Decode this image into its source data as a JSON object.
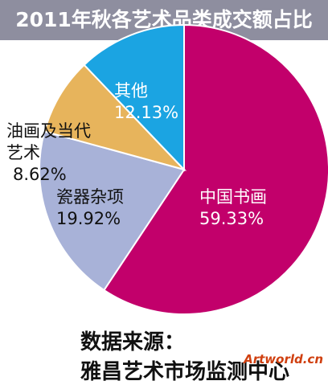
{
  "chart_data": {
    "type": "pie",
    "title": "2011年秋各艺术品类成交额占比",
    "categories": [
      "中国书画",
      "瓷器杂项",
      "油画及当代艺术",
      "其他"
    ],
    "values": [
      59.33,
      19.92,
      8.62,
      12.13
    ],
    "value_labels": [
      "59.33%",
      "19.92%",
      "8.62%",
      "12.13%"
    ],
    "colors": [
      "#c2006b",
      "#a8b2d8",
      "#e7b45c",
      "#1ba4e2"
    ],
    "source": [
      "数据来源：",
      "雅昌艺术市场监测中心"
    ],
    "watermark": "Artworld.cn"
  }
}
